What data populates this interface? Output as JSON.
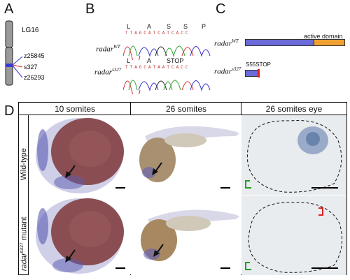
{
  "panels": {
    "a": "A",
    "b": "B",
    "c": "C",
    "d": "D"
  },
  "panel_a": {
    "chromosome": "LG16",
    "markers": [
      "z25845",
      "s327",
      "z26293"
    ]
  },
  "panel_b": {
    "wt_gene": "radar",
    "wt_sup": "WT",
    "mut_gene": "radar",
    "mut_sup": "s327",
    "wt_aa": [
      "L",
      "A",
      "S",
      "S",
      "P"
    ],
    "mut_aa": [
      "L",
      "A",
      "STOP"
    ],
    "seq_wt": "TTAGCATCATCACC",
    "seq_mut": "TTAGCATAATCACC"
  },
  "panel_c": {
    "wt_gene": "radar",
    "wt_sup": "WT",
    "mut_gene": "radar",
    "mut_sup": "s327",
    "domain_label": "active domain",
    "stop_label": "S55STOP",
    "colors": {
      "protein": "#6a6ad8",
      "domain": "#f0a030",
      "stop": "#e02020"
    }
  },
  "panel_d": {
    "columns": [
      "10 somites",
      "26 somites",
      "26 somites eye"
    ],
    "rows": [
      "Wild-type",
      "radar",
      "mutant"
    ],
    "row2_sup": "s327"
  }
}
